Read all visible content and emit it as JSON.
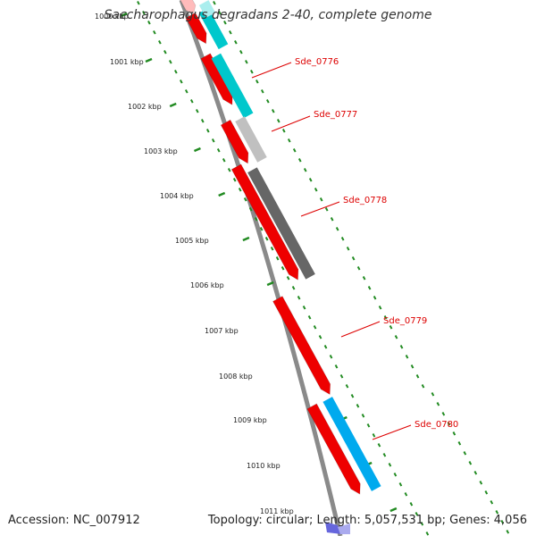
{
  "title": "Saccharophagus degradans 2-40, complete genome",
  "footer": {
    "accession": "Accession: NC_007912",
    "stats": "Topology: circular; Length: 5,057,531 bp; Genes: 4,056"
  },
  "scale": {
    "unit": "kbp",
    "ticks": [
      "1000 kbp",
      "1001 kbp",
      "1002 kbp",
      "1003 kbp",
      "1004 kbp",
      "1005 kbp",
      "1006 kbp",
      "1007 kbp",
      "1008 kbp",
      "1009 kbp",
      "1010 kbp",
      "1011 kbp"
    ]
  },
  "colors": {
    "gene_forward": "#ee0000",
    "cyan": "#00c8cc",
    "light_gray": "#c0c0c0",
    "dark_gray": "#666666",
    "blue": "#00aaee",
    "backbone": "#8a8a8a",
    "label": "#dd0000",
    "tick_green": "#228b22"
  },
  "genes": [
    {
      "label": "Sde_0776"
    },
    {
      "label": "Sde_0777"
    },
    {
      "label": "Sde_0778"
    },
    {
      "label": "Sde_0779"
    },
    {
      "label": "Sde_0780"
    }
  ]
}
